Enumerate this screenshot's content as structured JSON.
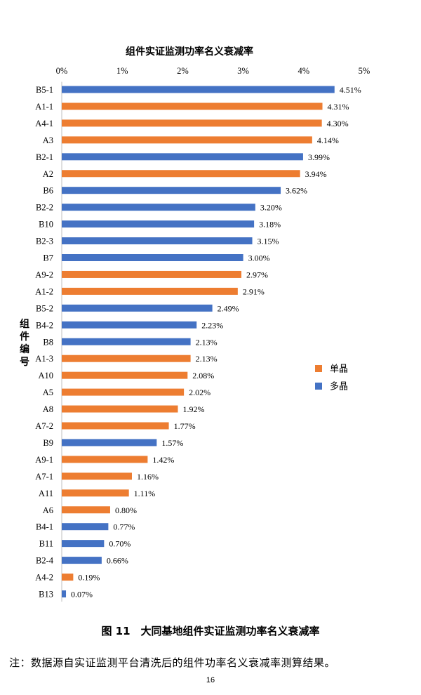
{
  "chart_data": {
    "type": "bar",
    "orientation": "horizontal",
    "title": "组件实证监测功率名义衰减率",
    "ylabel_chars": [
      "组",
      "件",
      "编",
      "号"
    ],
    "x_ticks": [
      "0%",
      "1%",
      "2%",
      "3%",
      "4%",
      "5%"
    ],
    "xlim": [
      0,
      5
    ],
    "x_axis_position": "top",
    "legend_position": "right",
    "series": [
      {
        "name": "单晶",
        "color": "#ED7D31"
      },
      {
        "name": "多晶",
        "color": "#4472C4"
      }
    ],
    "bars": [
      {
        "category": "B5-1",
        "value": 4.51,
        "label": "4.51%",
        "series": "多晶"
      },
      {
        "category": "A1-1",
        "value": 4.31,
        "label": "4.31%",
        "series": "单晶"
      },
      {
        "category": "A4-1",
        "value": 4.3,
        "label": "4.30%",
        "series": "单晶"
      },
      {
        "category": "A3",
        "value": 4.14,
        "label": "4.14%",
        "series": "单晶"
      },
      {
        "category": "B2-1",
        "value": 3.99,
        "label": "3.99%",
        "series": "多晶"
      },
      {
        "category": "A2",
        "value": 3.94,
        "label": "3.94%",
        "series": "单晶"
      },
      {
        "category": "B6",
        "value": 3.62,
        "label": "3.62%",
        "series": "多晶"
      },
      {
        "category": "B2-2",
        "value": 3.2,
        "label": "3.20%",
        "series": "多晶"
      },
      {
        "category": "B10",
        "value": 3.18,
        "label": "3.18%",
        "series": "多晶"
      },
      {
        "category": "B2-3",
        "value": 3.15,
        "label": "3.15%",
        "series": "多晶"
      },
      {
        "category": "B7",
        "value": 3.0,
        "label": "3.00%",
        "series": "多晶"
      },
      {
        "category": "A9-2",
        "value": 2.97,
        "label": "2.97%",
        "series": "单晶"
      },
      {
        "category": "A1-2",
        "value": 2.91,
        "label": "2.91%",
        "series": "单晶"
      },
      {
        "category": "B5-2",
        "value": 2.49,
        "label": "2.49%",
        "series": "多晶"
      },
      {
        "category": "B4-2",
        "value": 2.23,
        "label": "2.23%",
        "series": "多晶"
      },
      {
        "category": "B8",
        "value": 2.13,
        "label": "2.13%",
        "series": "多晶"
      },
      {
        "category": "A1-3",
        "value": 2.13,
        "label": "2.13%",
        "series": "单晶"
      },
      {
        "category": "A10",
        "value": 2.08,
        "label": "2.08%",
        "series": "单晶"
      },
      {
        "category": "A5",
        "value": 2.02,
        "label": "2.02%",
        "series": "单晶"
      },
      {
        "category": "A8",
        "value": 1.92,
        "label": "1.92%",
        "series": "单晶"
      },
      {
        "category": "A7-2",
        "value": 1.77,
        "label": "1.77%",
        "series": "单晶"
      },
      {
        "category": "B9",
        "value": 1.57,
        "label": "1.57%",
        "series": "多晶"
      },
      {
        "category": "A9-1",
        "value": 1.42,
        "label": "1.42%",
        "series": "单晶"
      },
      {
        "category": "A7-1",
        "value": 1.16,
        "label": "1.16%",
        "series": "单晶"
      },
      {
        "category": "A11",
        "value": 1.11,
        "label": "1.11%",
        "series": "单晶"
      },
      {
        "category": "A6",
        "value": 0.8,
        "label": "0.80%",
        "series": "单晶"
      },
      {
        "category": "B4-1",
        "value": 0.77,
        "label": "0.77%",
        "series": "多晶"
      },
      {
        "category": "B11",
        "value": 0.7,
        "label": "0.70%",
        "series": "多晶"
      },
      {
        "category": "B2-4",
        "value": 0.66,
        "label": "0.66%",
        "series": "多晶"
      },
      {
        "category": "A4-2",
        "value": 0.19,
        "label": "0.19%",
        "series": "单晶"
      },
      {
        "category": "B13",
        "value": 0.07,
        "label": "0.07%",
        "series": "多晶"
      }
    ]
  },
  "caption": "图 11　大同基地组件实证监测功率名义衰减率",
  "note": "注：数据源自实证监测平台清洗后的组件功率名义衰减率测算结果。",
  "page_number": "16"
}
